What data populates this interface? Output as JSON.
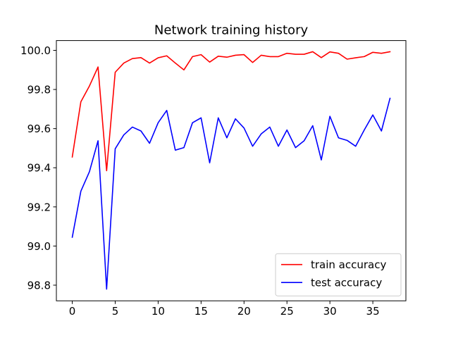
{
  "chart_data": {
    "type": "line",
    "title": "Network training history",
    "xlabel": "",
    "ylabel": "",
    "xlim": [
      -1.85,
      38.85
    ],
    "ylim": [
      98.72,
      100.05
    ],
    "xticks": [
      0,
      5,
      10,
      15,
      20,
      25,
      30,
      35
    ],
    "yticks": [
      98.8,
      99.0,
      99.2,
      99.4,
      99.6,
      99.8,
      100.0
    ],
    "ytick_labels": [
      "98.8",
      "99.0",
      "99.2",
      "99.4",
      "99.6",
      "99.8",
      "100.0"
    ],
    "grid": false,
    "legend_position": "lower right",
    "x": [
      0,
      1,
      2,
      3,
      4,
      5,
      6,
      7,
      8,
      9,
      10,
      11,
      12,
      13,
      14,
      15,
      16,
      17,
      18,
      19,
      20,
      21,
      22,
      23,
      24,
      25,
      26,
      27,
      28,
      29,
      30,
      31,
      32,
      33,
      34,
      35,
      36,
      37
    ],
    "series": [
      {
        "name": "train accuracy",
        "color": "#ff0000",
        "values": [
          99.455,
          99.737,
          99.818,
          99.915,
          99.385,
          99.888,
          99.935,
          99.958,
          99.963,
          99.935,
          99.962,
          99.972,
          99.935,
          99.9,
          99.968,
          99.978,
          99.94,
          99.97,
          99.965,
          99.975,
          99.978,
          99.938,
          99.975,
          99.968,
          99.968,
          99.985,
          99.98,
          99.98,
          99.993,
          99.963,
          99.992,
          99.985,
          99.955,
          99.962,
          99.968,
          99.99,
          99.985,
          99.993
        ]
      },
      {
        "name": "test accuracy",
        "color": "#0000ff",
        "values": [
          99.045,
          99.28,
          99.38,
          99.538,
          98.78,
          99.497,
          99.568,
          99.608,
          99.588,
          99.525,
          99.63,
          99.693,
          99.49,
          99.503,
          99.63,
          99.655,
          99.425,
          99.655,
          99.553,
          99.65,
          99.603,
          99.51,
          99.573,
          99.608,
          99.51,
          99.593,
          99.503,
          99.538,
          99.615,
          99.44,
          99.663,
          99.553,
          99.54,
          99.51,
          99.593,
          99.67,
          99.588,
          99.755
        ]
      }
    ]
  }
}
